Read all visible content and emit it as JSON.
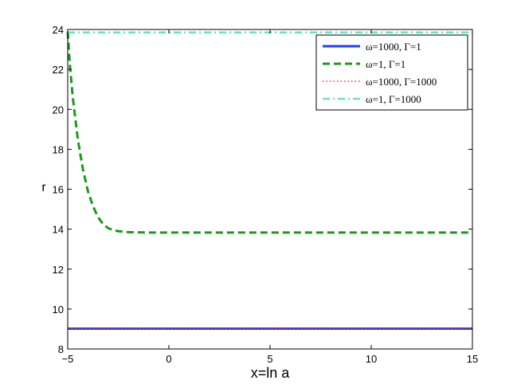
{
  "chart_data": {
    "type": "line",
    "xlabel": "x=ln a",
    "ylabel": "r",
    "xlim": [
      -5,
      15
    ],
    "ylim": [
      8,
      24
    ],
    "xticks": [
      -5,
      0,
      5,
      10,
      15
    ],
    "yticks": [
      8,
      10,
      12,
      14,
      16,
      18,
      20,
      22,
      24
    ],
    "grid": false,
    "legend_position": "top-right",
    "series": [
      {
        "name": "ω=1000, Γ=1",
        "color": "#1f3fff",
        "style": "solid",
        "x": [
          -5,
          0,
          5,
          10,
          15
        ],
        "y": [
          9.02,
          9.02,
          9.02,
          9.02,
          9.02
        ]
      },
      {
        "name": "ω=1, Γ=1",
        "color": "#1a9a1a",
        "style": "dashed",
        "x": [
          -5,
          -4.9,
          -4.75,
          -4.5,
          -4.25,
          -4.0,
          -3.75,
          -3.5,
          -3.25,
          -3.0,
          -2.75,
          -2.5,
          -2.25,
          -2.0,
          -1.5,
          -1.0,
          0,
          2,
          5,
          10,
          15
        ],
        "y": [
          23.9,
          22.3,
          20.6,
          18.5,
          17.0,
          15.9,
          15.15,
          14.6,
          14.25,
          14.05,
          13.95,
          13.9,
          13.87,
          13.85,
          13.84,
          13.83,
          13.83,
          13.83,
          13.83,
          13.83,
          13.83
        ]
      },
      {
        "name": "ω=1000, Γ=1000",
        "color": "#ff3030",
        "style": "dotted",
        "x": [
          -5,
          0,
          5,
          10,
          15
        ],
        "y": [
          9.02,
          9.02,
          9.02,
          9.02,
          9.02
        ]
      },
      {
        "name": "ω=1, Γ=1000",
        "color": "#5fe8c0",
        "style": "dashdot",
        "x": [
          -5,
          0,
          5,
          10,
          15
        ],
        "y": [
          23.85,
          23.85,
          23.85,
          23.85,
          23.85
        ]
      }
    ]
  }
}
